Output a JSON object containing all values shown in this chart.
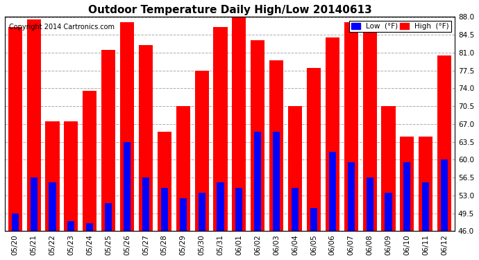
{
  "title": "Outdoor Temperature Daily High/Low 20140613",
  "copyright": "Copyright 2014 Cartronics.com",
  "dates": [
    "05/20",
    "05/21",
    "05/22",
    "05/23",
    "05/24",
    "05/25",
    "05/26",
    "05/27",
    "05/28",
    "05/29",
    "05/30",
    "05/31",
    "06/01",
    "06/02",
    "06/03",
    "06/04",
    "06/05",
    "06/06",
    "06/07",
    "06/08",
    "06/09",
    "06/10",
    "06/11",
    "06/12"
  ],
  "high_temps": [
    86.0,
    87.5,
    67.5,
    67.5,
    73.5,
    81.5,
    87.0,
    82.5,
    65.5,
    70.5,
    77.5,
    86.0,
    88.5,
    83.5,
    79.5,
    70.5,
    78.0,
    84.0,
    87.0,
    86.5,
    70.5,
    64.5,
    64.5,
    80.5
  ],
  "low_temps": [
    49.5,
    56.5,
    55.5,
    48.0,
    47.5,
    51.5,
    63.5,
    56.5,
    54.5,
    52.5,
    53.5,
    55.5,
    54.5,
    65.5,
    65.5,
    54.5,
    50.5,
    61.5,
    59.5,
    56.5,
    53.5,
    59.5,
    55.5,
    60.0
  ],
  "high_color": "#ff0000",
  "low_color": "#0000ff",
  "bg_color": "#ffffff",
  "grid_color": "#aaaaaa",
  "ylim_min": 46.0,
  "ylim_max": 88.0,
  "yticks": [
    46.0,
    49.5,
    53.0,
    56.5,
    60.0,
    63.5,
    67.0,
    70.5,
    74.0,
    77.5,
    81.0,
    84.5,
    88.0
  ],
  "title_fontsize": 11,
  "tick_fontsize": 7.5,
  "copyright_fontsize": 7,
  "legend_low_label": "Low  (°F)",
  "legend_high_label": "High  (°F)"
}
